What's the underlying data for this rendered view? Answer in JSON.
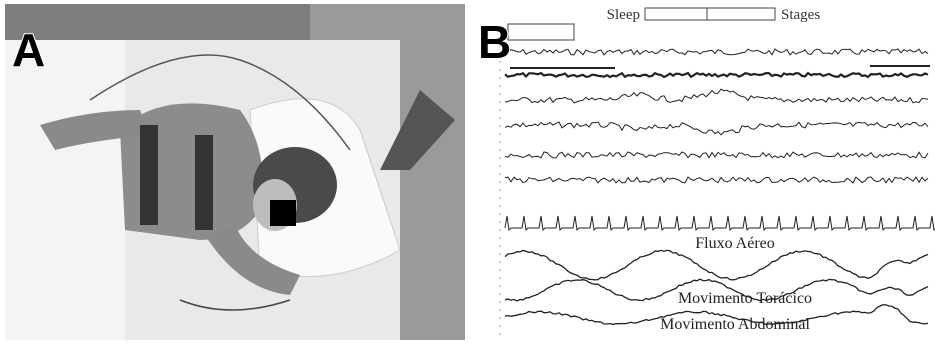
{
  "panels": [
    {
      "label": "A"
    },
    {
      "label": "B",
      "header": {
        "left": "Sleep",
        "right": "Stages"
      },
      "traces": [
        "Fluxo Aéreo",
        "Movimento Torácico",
        "Movimento Abdominal"
      ]
    }
  ]
}
